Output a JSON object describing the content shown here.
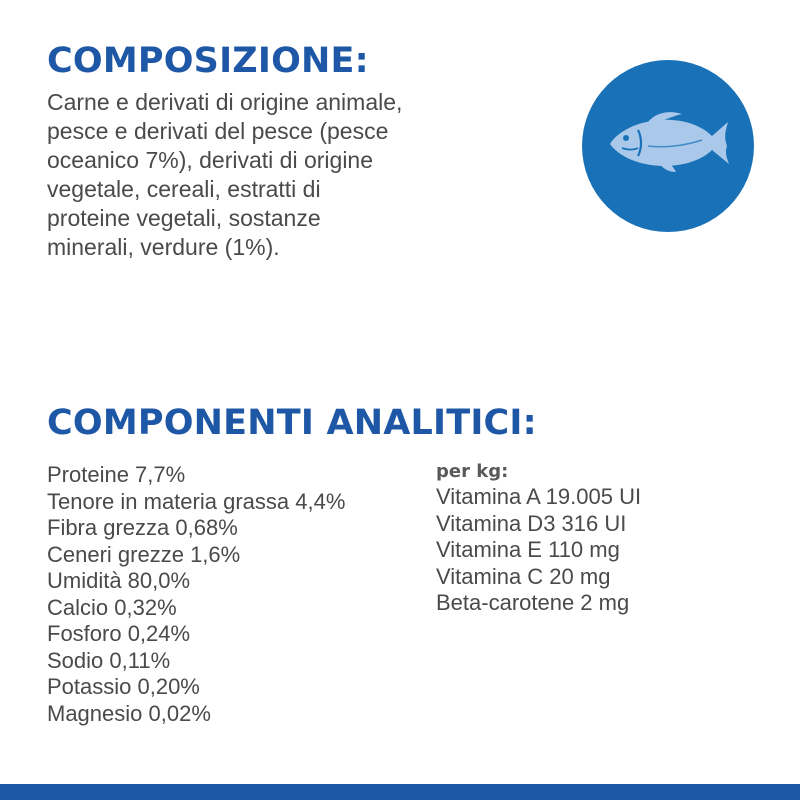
{
  "composition": {
    "heading": "COMPOSIZIONE:",
    "text": "Carne e derivati di origine animale,\npesce e derivati del pesce (pesce\noceanico 7%), derivati di origine\nvegetale, cereali, estratti di\nproteine vegetali, sostanze\nminerali, verdure (1%).",
    "badge_icon": "fish-icon"
  },
  "analytic": {
    "heading": "COMPONENTI ANALITICI:",
    "nutrients": [
      "Proteine 7,7%",
      "Tenore in materia grassa 4,4%",
      "Fibra grezza 0,68%",
      "Ceneri grezze 1,6%",
      "Umidità 80,0%",
      "Calcio 0,32%",
      "Fosforo 0,24%",
      "Sodio 0,11%",
      "Potassio 0,20%",
      "Magnesio 0,02%"
    ],
    "per_kg_label": "per kg:",
    "vitamins": [
      "Vitamina A 19.005 UI",
      "Vitamina D3 316 UI",
      "Vitamina E 110 mg",
      "Vitamina C 20 mg",
      "Beta-carotene 2 mg"
    ]
  },
  "colors": {
    "brand_blue": "#1d57a6",
    "badge_blue": "#1971b8",
    "fish_light": "#a9c8ea",
    "text_gray": "#4a4a4a"
  }
}
